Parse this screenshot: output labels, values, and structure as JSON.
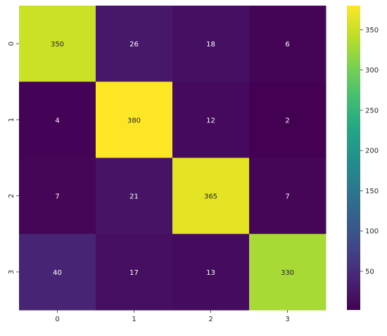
{
  "chart_data": {
    "type": "heatmap",
    "title": "",
    "xlabel": "",
    "ylabel": "",
    "x_categories": [
      "0",
      "1",
      "2",
      "3"
    ],
    "y_categories": [
      "0",
      "1",
      "2",
      "3"
    ],
    "values": [
      [
        350,
        26,
        18,
        6
      ],
      [
        4,
        380,
        12,
        2
      ],
      [
        7,
        21,
        365,
        7
      ],
      [
        40,
        17,
        13,
        330
      ]
    ],
    "colormap": "viridis",
    "color_range": [
      2,
      380
    ],
    "colorbar_ticks": [
      50,
      100,
      150,
      200,
      250,
      300,
      350
    ],
    "grid": false
  }
}
